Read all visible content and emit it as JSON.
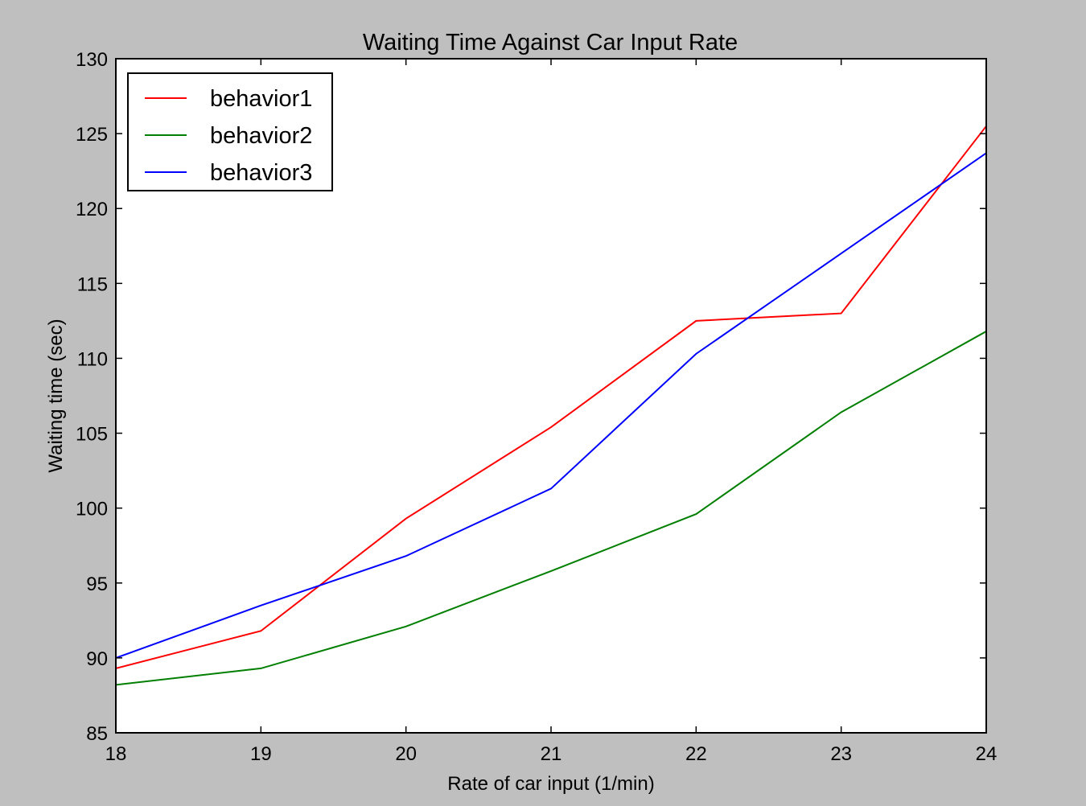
{
  "chart_data": {
    "type": "line",
    "title": "Waiting Time Against Car Input Rate",
    "xlabel": "Rate of car input (1/min)",
    "ylabel": "Waiting time (sec)",
    "xlim": [
      18,
      24
    ],
    "ylim": [
      85,
      130
    ],
    "xticks": [
      18,
      19,
      20,
      21,
      22,
      23,
      24
    ],
    "yticks": [
      85,
      90,
      95,
      100,
      105,
      110,
      115,
      120,
      125,
      130
    ],
    "x": [
      18,
      19,
      20,
      21,
      22,
      23,
      24
    ],
    "series": [
      {
        "name": "behavior1",
        "color": "#ff0000",
        "values": [
          89.3,
          91.8,
          99.3,
          105.4,
          112.5,
          113.0,
          125.5
        ]
      },
      {
        "name": "behavior2",
        "color": "#007f00",
        "values": [
          88.2,
          89.3,
          92.1,
          95.8,
          99.6,
          106.4,
          111.8
        ]
      },
      {
        "name": "behavior3",
        "color": "#0000ff",
        "values": [
          90.0,
          93.5,
          96.8,
          101.3,
          110.3,
          117.0,
          123.7
        ]
      }
    ],
    "legend": "top-left",
    "grid": false
  }
}
